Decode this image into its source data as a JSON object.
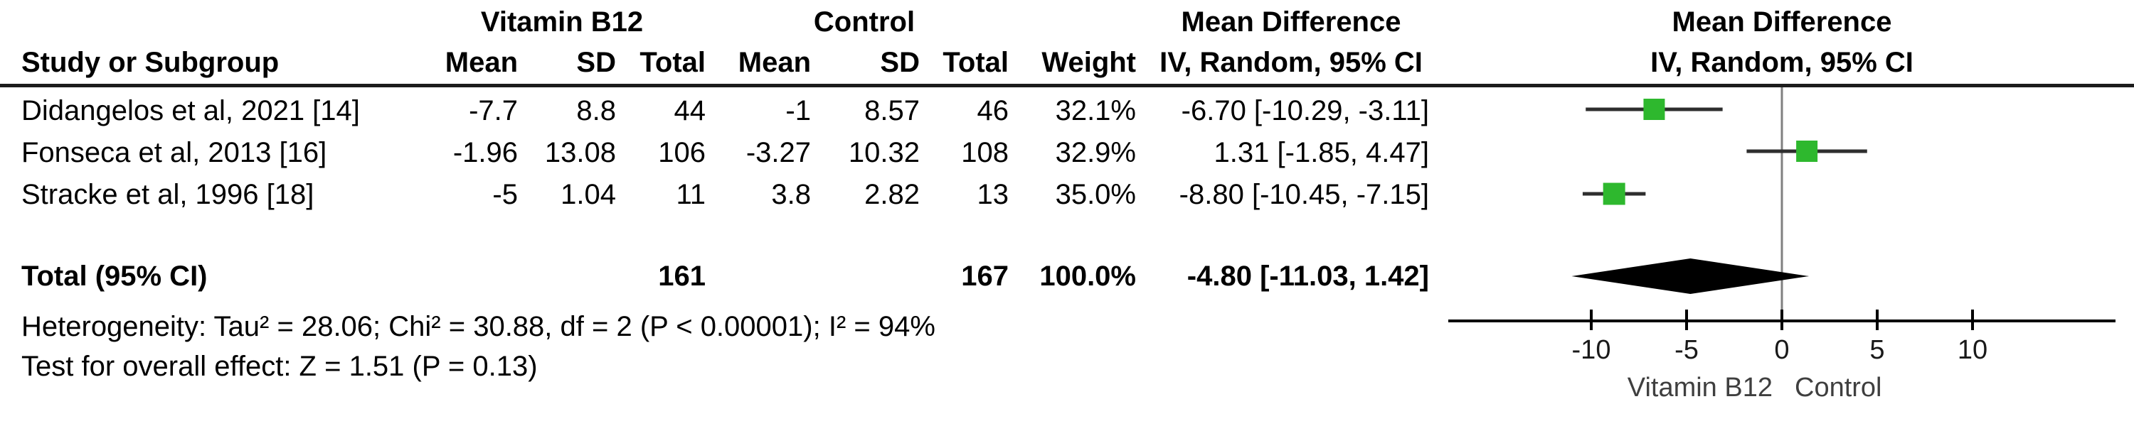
{
  "colors": {
    "square": "#2EB82E",
    "ci_line": "#2e2e2e",
    "diamond": "#000000",
    "zero_line": "#808080",
    "axis": "#000000",
    "tick_label": "#191919",
    "footer_label": "#3f3f3f",
    "rule": "#1c1c1c"
  },
  "header": {
    "group1": "Vitamin B12",
    "group2": "Control",
    "study_col": "Study or Subgroup",
    "mean1": "Mean",
    "sd1": "SD",
    "total1": "Total",
    "mean2": "Mean",
    "sd2": "SD",
    "total2": "Total",
    "weight": "Weight",
    "effect_col_line1": "Mean Difference",
    "effect_col_line2": "IV, Random, 95% CI",
    "plot_col_line1": "Mean Difference",
    "plot_col_line2": "IV, Random, 95% CI"
  },
  "studies": [
    {
      "name": "Didangelos et al, 2021 [14]",
      "mean1": "-7.7",
      "sd1": "8.8",
      "total1": "44",
      "mean2": "-1",
      "sd2": "8.57",
      "total2": "46",
      "weight": "32.1%",
      "ci_text": "-6.70 [-10.29, -3.11]"
    },
    {
      "name": "Fonseca et al, 2013 [16]",
      "mean1": "-1.96",
      "sd1": "13.08",
      "total1": "106",
      "mean2": "-3.27",
      "sd2": "10.32",
      "total2": "108",
      "weight": "32.9%",
      "ci_text": "1.31 [-1.85, 4.47]"
    },
    {
      "name": "Stracke et al, 1996 [18]",
      "mean1": "-5",
      "sd1": "1.04",
      "total1": "11",
      "mean2": "3.8",
      "sd2": "2.82",
      "total2": "13",
      "weight": "35.0%",
      "ci_text": "-8.80 [-10.45, -7.15]"
    }
  ],
  "total_row": {
    "label": "Total (95% CI)",
    "total1": "161",
    "total2": "167",
    "weight": "100.0%",
    "ci_text": "-4.80 [-11.03, 1.42]"
  },
  "footnotes": {
    "heterogeneity": "Heterogeneity: Tau² = 28.06; Chi² = 30.88, df = 2 (P < 0.00001); I² = 94%",
    "overall_effect": "Test for overall effect: Z = 1.51 (P = 0.13)"
  },
  "chart_data": {
    "type": "forest",
    "title": "Mean Difference",
    "subtitle": "IV, Random, 95% CI",
    "effect_measure": "Mean Difference, IV, Random, 95% CI",
    "x_ticks": [
      -10,
      -5,
      0,
      5,
      10
    ],
    "x_tick_labels": [
      "-10",
      "-5",
      "0",
      "5",
      "10"
    ],
    "xlim": [
      -17.5,
      17.5
    ],
    "xlabel_left": "Vitamin B12",
    "xlabel_right": "Control",
    "studies": [
      {
        "name": "Didangelos et al, 2021 [14]",
        "md": -6.7,
        "ci": [
          -10.29,
          -3.11
        ],
        "weight_pct": 32.1
      },
      {
        "name": "Fonseca et al, 2013 [16]",
        "md": 1.31,
        "ci": [
          -1.85,
          4.47
        ],
        "weight_pct": 32.9
      },
      {
        "name": "Stracke et al, 1996 [18]",
        "md": -8.8,
        "ci": [
          -10.45,
          -7.15
        ],
        "weight_pct": 35.0
      }
    ],
    "total": {
      "md": -4.8,
      "ci": [
        -11.03,
        1.42
      ],
      "weight_pct": 100.0
    }
  }
}
